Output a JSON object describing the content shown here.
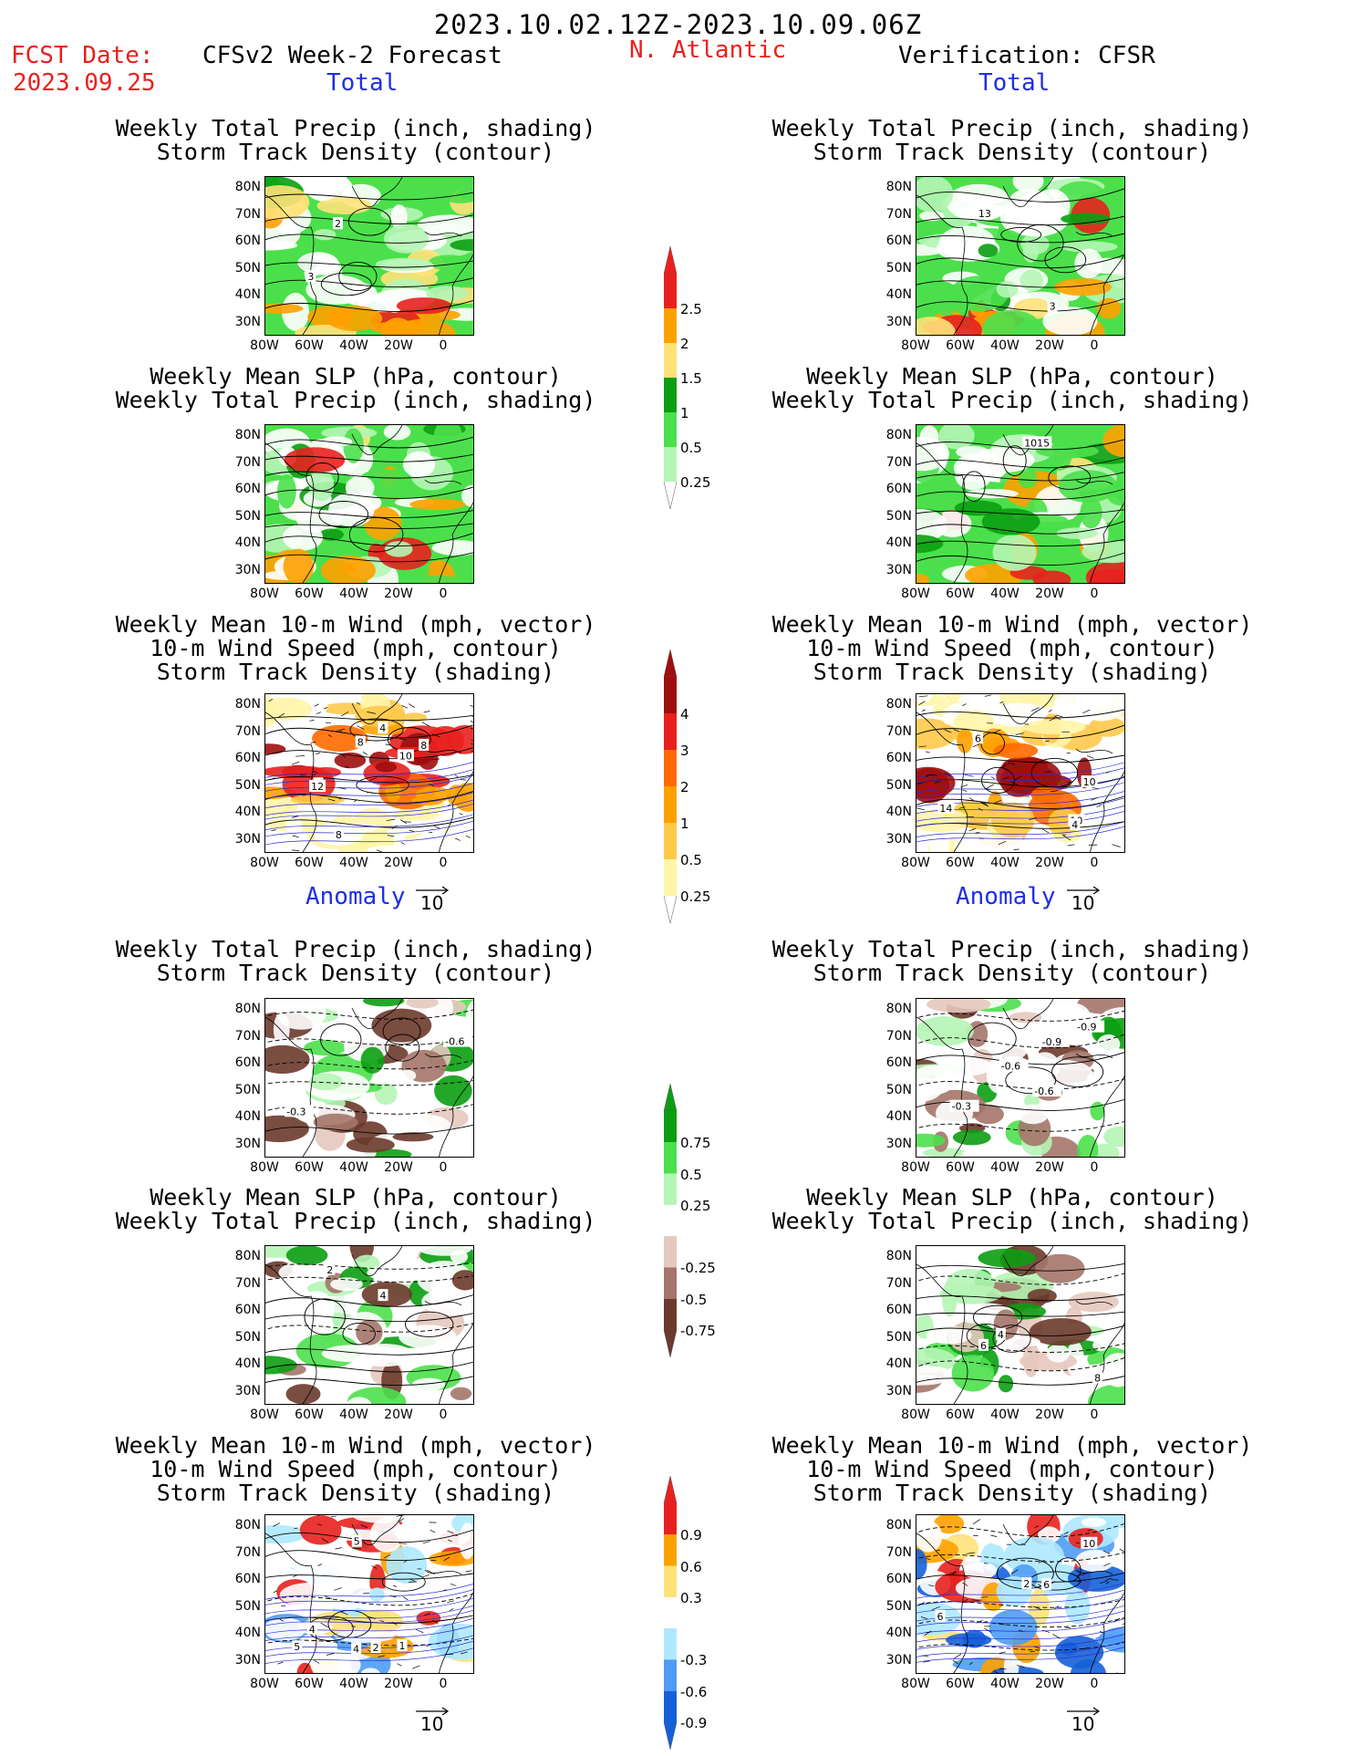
{
  "header": {
    "date_range": "2023.10.02.12Z-2023.10.09.06Z",
    "fcst_label": "FCST Date:",
    "fcst_date": "2023.09.25",
    "model_label": "CFSv2 Week-2 Forecast",
    "region": "N. Atlantic",
    "verification_label": "Verification: CFSR"
  },
  "sections": {
    "total": "Total",
    "anomaly": "Anomaly"
  },
  "panel_titles": {
    "precip_storm": [
      "Weekly Total Precip (inch, shading)",
      "Storm Track Density (contour)"
    ],
    "slp_precip": [
      "Weekly Mean SLP (hPa, contour)",
      "Weekly Total Precip (inch, shading)"
    ],
    "wind_storm": [
      "Weekly Mean 10-m Wind (mph, vector)",
      "10-m Wind Speed (mph, contour)",
      "Storm Track Density (shading)"
    ]
  },
  "axes": {
    "lat_ticks": [
      "80N",
      "70N",
      "60N",
      "50N",
      "40N",
      "30N"
    ],
    "lon_ticks": [
      "80W",
      "60W",
      "40W",
      "20W",
      "0"
    ]
  },
  "vector_ref": "10",
  "colorbars": {
    "precip_total": {
      "labels": [
        "2.5",
        "2",
        "1.5",
        "1",
        "0.5",
        "0.25"
      ],
      "colors": [
        "#e8211e",
        "#ffa100",
        "#ffe27a",
        "#0b9e12",
        "#4be04b",
        "#b5f5b5"
      ]
    },
    "storm_total": {
      "labels": [
        "4",
        "3",
        "2",
        "1",
        "0.5",
        "0.25"
      ],
      "colors": [
        "#9e0e0e",
        "#e8211e",
        "#ff6a00",
        "#ffa100",
        "#ffc94a",
        "#fff5a8"
      ]
    },
    "precip_anom": {
      "labels": [
        "0.75",
        "0.5",
        "0.25",
        "-0.25",
        "-0.5",
        "-0.75"
      ],
      "colors": [
        "#0b9e12",
        "#4be04b",
        "#b5f5b5",
        "#ffffff",
        "#e5c8be",
        "#a4756a",
        "#6b3a2c"
      ]
    },
    "storm_anom": {
      "labels": [
        "0.9",
        "0.6",
        "0.3",
        "-0.3",
        "-0.6",
        "-0.9"
      ],
      "colors": [
        "#e8211e",
        "#ffa100",
        "#ffe27a",
        "#ffffff",
        "#aee9ff",
        "#4f9cf5",
        "#1560d8"
      ]
    }
  },
  "contour_labels": {
    "f1": [
      "3",
      "2"
    ],
    "v1": [
      "13",
      "3"
    ],
    "v2": [
      "1015"
    ],
    "f3": [
      "10",
      "8",
      "8",
      "8",
      "8",
      "12",
      "4"
    ],
    "v3": [
      "10",
      "4",
      "14",
      "10",
      "6"
    ],
    "f4": [
      "-0.6",
      "-0.3"
    ],
    "v4": [
      "-0.3",
      "-0.6",
      "-0.9",
      "-0.6",
      "-0.9"
    ],
    "f5": [
      "2",
      "4"
    ],
    "v5": [
      "4",
      "8",
      "6"
    ],
    "f6": [
      "2",
      "4",
      "5",
      "5",
      "1",
      "4"
    ],
    "v6": [
      "6",
      "2",
      "10",
      "6"
    ]
  }
}
